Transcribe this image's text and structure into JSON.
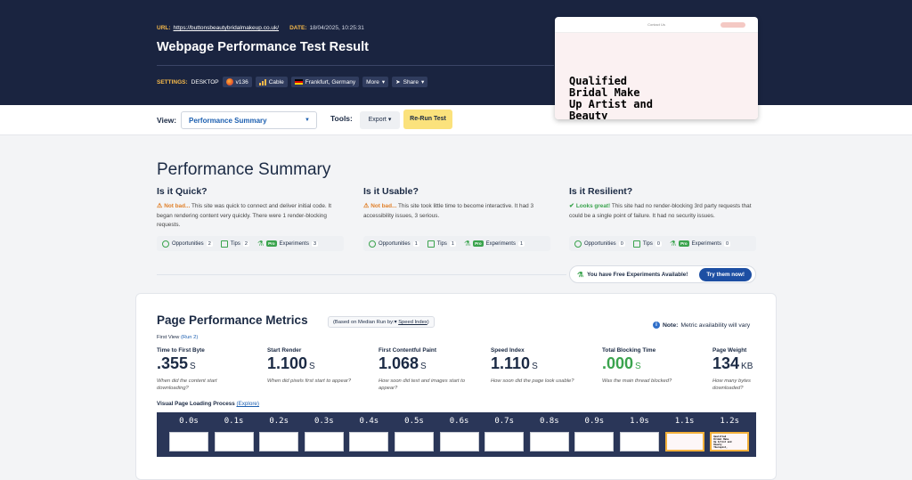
{
  "header": {
    "url_label": "URL:",
    "url": "https://buttonsbeautybridalmakeup.co.uk/",
    "date_label": "DATE:",
    "date": "18/04/2025, 10:25:31",
    "title": "Webpage Performance Test Result",
    "settings_label": "SETTINGS:",
    "device": "DESKTOP",
    "browser_version": "v136",
    "connection": "Cable",
    "location": "Frankfurt, Germany",
    "more_label": "More",
    "share_label": "Share"
  },
  "preview": {
    "nav_text": "Contact Us",
    "hero_text": "Qualified\nBridal Make\nUp Artist and\nBeauty\nTherapist,"
  },
  "toolbar": {
    "view_label": "View:",
    "view_value": "Performance Summary",
    "tools_label": "Tools:",
    "export_label": "Export",
    "rerun_label": "Re-Run Test"
  },
  "summary": {
    "title": "Performance Summary",
    "quick": {
      "heading": "Is it Quick?",
      "verdict": "Not bad...",
      "text": " This site was quick to connect and deliver initial code. It began rendering content very quickly. There were 1 render-blocking requests.",
      "opportunities": "2",
      "tips": "2",
      "experiments": "3"
    },
    "usable": {
      "heading": "Is it Usable?",
      "verdict": "Not bad...",
      "text": " This site took little time to become interactive. It had 3 accessibility issues, 3 serious.",
      "opportunities": "1",
      "tips": "1",
      "experiments": "1"
    },
    "resilient": {
      "heading": "Is it Resilient?",
      "verdict": "Looks great!",
      "text": " This site had no render-blocking 3rd party requests that could be a single point of failure. It had no security issues.",
      "opportunities": "0",
      "tips": "0",
      "experiments": "0"
    },
    "labels": {
      "opportunities": "Opportunities",
      "tips": "Tips",
      "experiments": "Experiments",
      "pro": "Pro"
    },
    "free_experiments": "You have Free Experiments Available!",
    "try_label": "Try them now!"
  },
  "metrics": {
    "title": "Page Performance Metrics",
    "median_prefix": "(Based on Median Run by:",
    "median_metric": "Speed Index",
    "median_suffix": ")",
    "note_label": "Note:",
    "note_text": "Metric availability will vary",
    "first_view": "First View",
    "run_link": "(Run 2)",
    "items": [
      {
        "name": "Time to First Byte",
        "value": ".355",
        "unit": "S",
        "desc": "When did the content start downloading?"
      },
      {
        "name": "Start Render",
        "value": "1.100",
        "unit": "S",
        "desc": "When did pixels first start to appear?"
      },
      {
        "name": "First Contentful Paint",
        "value": "1.068",
        "unit": "S",
        "desc": "How soon did text and images start to appear?"
      },
      {
        "name": "Speed Index",
        "value": "1.110",
        "unit": "S",
        "desc": "How soon did the page look usable?"
      },
      {
        "name": "Total Blocking Time",
        "value": ".000",
        "unit": "S",
        "desc": "Was the main thread blocked?"
      },
      {
        "name": "Page Weight",
        "value": "134",
        "unit": "KB",
        "desc": "How many bytes downloaded?"
      }
    ],
    "vpl_label": "Visual Page Loading Process",
    "vpl_link": "(Explore)",
    "frames": [
      "0.0s",
      "0.1s",
      "0.2s",
      "0.3s",
      "0.4s",
      "0.5s",
      "0.6s",
      "0.7s",
      "0.8s",
      "0.9s",
      "1.0s",
      "1.1s",
      "1.2s"
    ]
  },
  "colors": {
    "header_bg": "#1a2440",
    "accent_yellow": "#fbe27c",
    "good_green": "#3aa34d",
    "warn_orange": "#e0802a",
    "link_blue": "#1c5fb0"
  }
}
